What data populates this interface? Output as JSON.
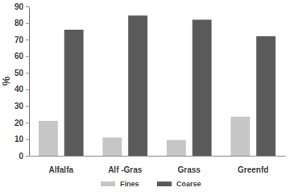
{
  "chart_data": {
    "type": "bar",
    "y_label": "%",
    "categories": [
      "Alfalfa",
      "Alf -Gras",
      "Grass",
      "Greenfd"
    ],
    "series": [
      {
        "name": "Fines",
        "color": "#c6c6c6",
        "values": [
          21,
          11,
          9.5,
          23.5
        ]
      },
      {
        "name": "Coarse",
        "color": "#5a5a5a",
        "values": [
          76,
          84.5,
          82,
          72
        ]
      }
    ],
    "ylim": [
      0,
      90
    ],
    "yticks": [
      0,
      10,
      20,
      30,
      40,
      50,
      60,
      70,
      80,
      90
    ],
    "grid": false,
    "legend": "bottom"
  }
}
